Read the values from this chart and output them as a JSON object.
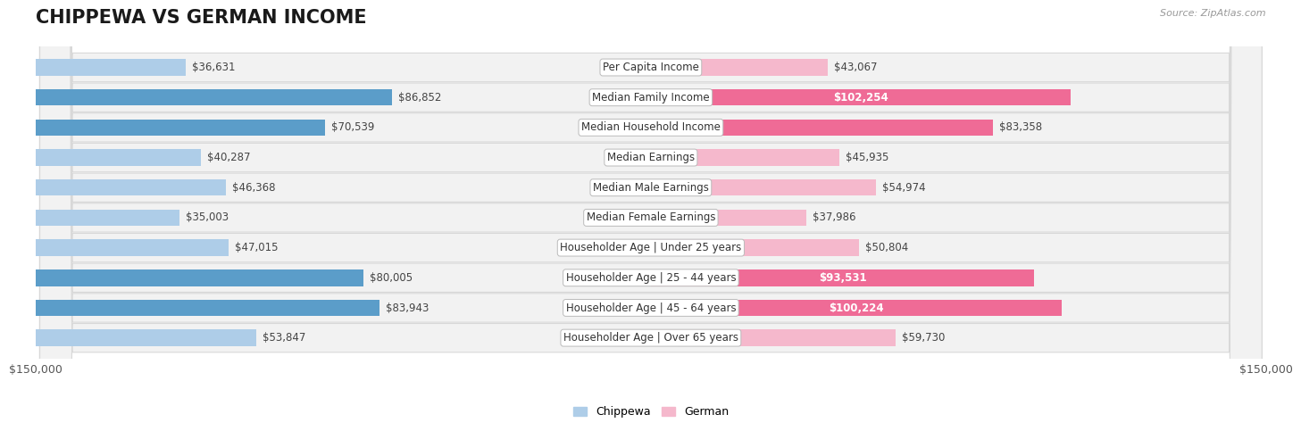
{
  "title": "CHIPPEWA VS GERMAN INCOME",
  "source": "Source: ZipAtlas.com",
  "categories": [
    "Per Capita Income",
    "Median Family Income",
    "Median Household Income",
    "Median Earnings",
    "Median Male Earnings",
    "Median Female Earnings",
    "Householder Age | Under 25 years",
    "Householder Age | 25 - 44 years",
    "Householder Age | 45 - 64 years",
    "Householder Age | Over 65 years"
  ],
  "chippewa_values": [
    36631,
    86852,
    70539,
    40287,
    46368,
    35003,
    47015,
    80005,
    83943,
    53847
  ],
  "german_values": [
    43067,
    102254,
    83358,
    45935,
    54974,
    37986,
    50804,
    93531,
    100224,
    59730
  ],
  "chippewa_labels": [
    "$36,631",
    "$86,852",
    "$70,539",
    "$40,287",
    "$46,368",
    "$35,003",
    "$47,015",
    "$80,005",
    "$83,943",
    "$53,847"
  ],
  "german_labels": [
    "$43,067",
    "$102,254",
    "$83,358",
    "$45,935",
    "$54,974",
    "$37,986",
    "$50,804",
    "$93,531",
    "$100,224",
    "$59,730"
  ],
  "chippewa_label_inside": [
    false,
    false,
    false,
    false,
    false,
    false,
    false,
    false,
    false,
    false
  ],
  "german_label_inside": [
    false,
    true,
    false,
    false,
    false,
    false,
    false,
    true,
    true,
    false
  ],
  "chippewa_color_light": "#aecde8",
  "chippewa_color_dark": "#5b9dc9",
  "german_color_light": "#f5b8cc",
  "german_color_dark": "#ef6b96",
  "row_bg_color": "#f2f2f2",
  "row_border_color": "#d8d8d8",
  "max_value": 150000,
  "xlabel_left": "$150,000",
  "xlabel_right": "$150,000",
  "legend_chippewa": "Chippewa",
  "legend_german": "German",
  "title_fontsize": 15,
  "label_fontsize": 8.5,
  "category_fontsize": 8.5,
  "axis_label_fontsize": 9
}
